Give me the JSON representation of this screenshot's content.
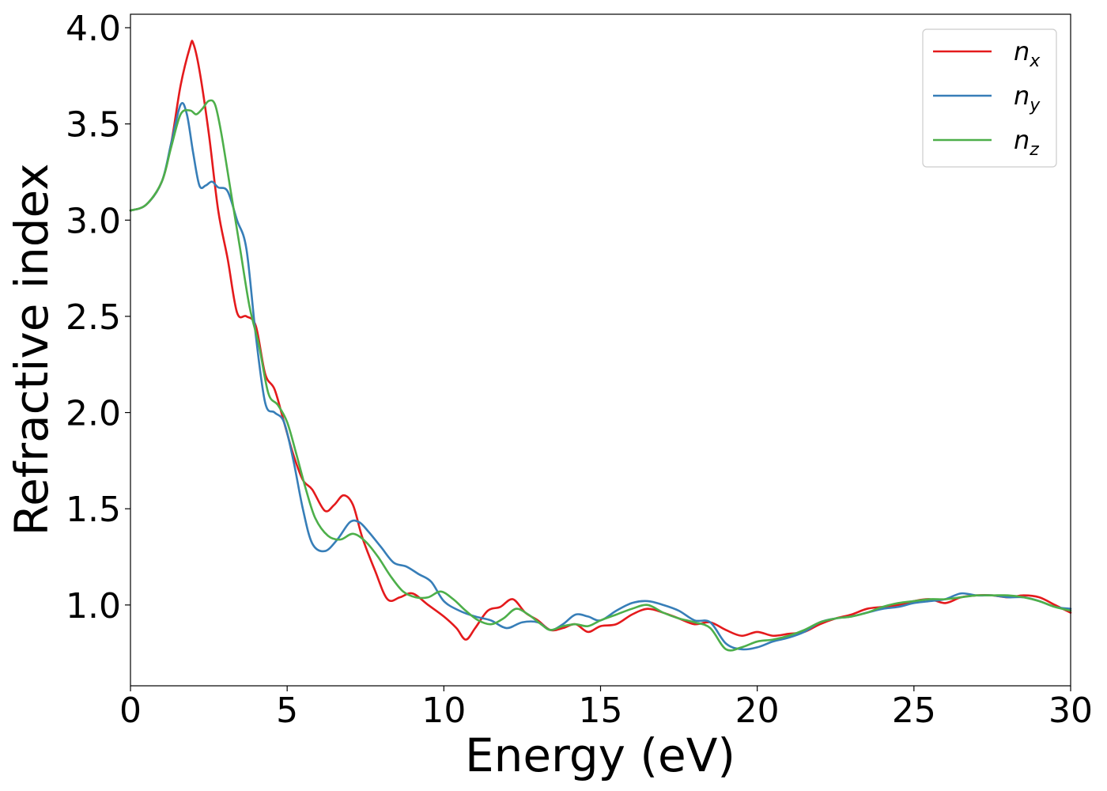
{
  "chart_data": {
    "type": "line",
    "title": "",
    "xlabel": "Energy (eV)",
    "ylabel": "Refractive index",
    "xlim": [
      0,
      30
    ],
    "ylim": [
      0.58,
      4.07
    ],
    "xticks": [
      "0",
      "5",
      "10",
      "15",
      "20",
      "25",
      "30"
    ],
    "yticks": [
      "1.0",
      "1.5",
      "2.0",
      "2.5",
      "3.0",
      "3.5",
      "4.0"
    ],
    "grid": false,
    "legend_position": "top-right",
    "series": [
      {
        "name": "n",
        "subscript": "x",
        "color": "#e41a1c",
        "x": [
          0,
          0.5,
          1.0,
          1.3,
          1.6,
          1.9,
          2.0,
          2.2,
          2.5,
          2.8,
          3.1,
          3.4,
          3.7,
          4.0,
          4.3,
          4.6,
          4.9,
          5.2,
          5.5,
          5.8,
          6.2,
          6.5,
          6.8,
          7.1,
          7.4,
          7.8,
          8.2,
          8.6,
          9.0,
          9.5,
          10.0,
          10.4,
          10.7,
          11.0,
          11.4,
          11.8,
          12.2,
          12.6,
          13.0,
          13.4,
          13.8,
          14.2,
          14.6,
          15.0,
          15.5,
          16.0,
          16.5,
          17.0,
          17.5,
          18.0,
          18.5,
          19.0,
          19.5,
          20.0,
          20.5,
          21.0,
          21.5,
          22.0,
          22.5,
          23.0,
          23.5,
          24.0,
          24.5,
          25.0,
          25.5,
          26.0,
          26.5,
          27.0,
          27.5,
          28.0,
          28.5,
          29.0,
          29.5,
          30.0
        ],
        "y": [
          3.05,
          3.08,
          3.2,
          3.4,
          3.7,
          3.9,
          3.92,
          3.78,
          3.45,
          3.05,
          2.8,
          2.52,
          2.5,
          2.45,
          2.2,
          2.12,
          1.95,
          1.78,
          1.65,
          1.6,
          1.49,
          1.52,
          1.57,
          1.52,
          1.35,
          1.18,
          1.03,
          1.04,
          1.06,
          1.0,
          0.94,
          0.88,
          0.82,
          0.88,
          0.97,
          0.99,
          1.03,
          0.96,
          0.92,
          0.87,
          0.88,
          0.9,
          0.86,
          0.89,
          0.9,
          0.95,
          0.98,
          0.96,
          0.93,
          0.9,
          0.91,
          0.87,
          0.84,
          0.86,
          0.84,
          0.85,
          0.86,
          0.9,
          0.93,
          0.95,
          0.98,
          0.99,
          1.0,
          1.02,
          1.03,
          1.01,
          1.04,
          1.05,
          1.05,
          1.04,
          1.05,
          1.04,
          1.0,
          0.96
        ]
      },
      {
        "name": "n",
        "subscript": "y",
        "color": "#377eb8",
        "x": [
          0,
          0.5,
          1.0,
          1.3,
          1.6,
          1.8,
          2.0,
          2.2,
          2.4,
          2.6,
          2.8,
          3.1,
          3.4,
          3.7,
          4.0,
          4.3,
          4.6,
          4.9,
          5.2,
          5.5,
          5.8,
          6.2,
          6.6,
          7.0,
          7.3,
          7.6,
          8.0,
          8.4,
          8.8,
          9.2,
          9.6,
          10.0,
          10.5,
          11.0,
          11.5,
          12.0,
          12.5,
          13.0,
          13.4,
          13.8,
          14.2,
          14.6,
          15.0,
          15.5,
          16.0,
          16.5,
          17.0,
          17.5,
          18.0,
          18.5,
          19.0,
          19.5,
          20.0,
          20.5,
          21.0,
          21.5,
          22.0,
          22.5,
          23.0,
          23.5,
          24.0,
          24.5,
          25.0,
          25.5,
          26.0,
          26.5,
          27.0,
          27.5,
          28.0,
          28.5,
          29.0,
          29.5,
          30.0
        ],
        "y": [
          3.05,
          3.08,
          3.2,
          3.4,
          3.6,
          3.55,
          3.35,
          3.18,
          3.18,
          3.2,
          3.17,
          3.15,
          3.0,
          2.85,
          2.4,
          2.05,
          2.0,
          1.95,
          1.75,
          1.5,
          1.32,
          1.28,
          1.34,
          1.43,
          1.43,
          1.38,
          1.3,
          1.22,
          1.2,
          1.16,
          1.12,
          1.02,
          0.97,
          0.94,
          0.92,
          0.88,
          0.91,
          0.91,
          0.87,
          0.9,
          0.95,
          0.94,
          0.92,
          0.97,
          1.01,
          1.02,
          1.0,
          0.97,
          0.92,
          0.91,
          0.8,
          0.77,
          0.78,
          0.81,
          0.83,
          0.86,
          0.91,
          0.93,
          0.94,
          0.96,
          0.98,
          0.99,
          1.01,
          1.02,
          1.03,
          1.06,
          1.05,
          1.05,
          1.04,
          1.04,
          1.02,
          0.99,
          0.98
        ]
      },
      {
        "name": "n",
        "subscript": "z",
        "color": "#4daf4a",
        "x": [
          0,
          0.5,
          1.0,
          1.3,
          1.6,
          1.9,
          2.1,
          2.3,
          2.5,
          2.7,
          2.9,
          3.2,
          3.5,
          3.8,
          4.1,
          4.4,
          4.7,
          5.0,
          5.3,
          5.6,
          5.9,
          6.3,
          6.7,
          7.1,
          7.5,
          7.9,
          8.3,
          8.7,
          9.1,
          9.5,
          9.9,
          10.3,
          10.7,
          11.1,
          11.5,
          11.9,
          12.3,
          12.7,
          13.1,
          13.4,
          13.8,
          14.2,
          14.6,
          15.0,
          15.5,
          16.0,
          16.5,
          17.0,
          17.5,
          18.0,
          18.5,
          19.0,
          19.5,
          20.0,
          20.5,
          21.0,
          21.5,
          22.0,
          22.5,
          23.0,
          23.5,
          24.0,
          24.5,
          25.0,
          25.5,
          26.0,
          26.5,
          27.0,
          27.5,
          28.0,
          28.5,
          29.0,
          29.5,
          30.0
        ],
        "y": [
          3.05,
          3.08,
          3.2,
          3.38,
          3.55,
          3.57,
          3.55,
          3.58,
          3.62,
          3.6,
          3.45,
          3.15,
          2.85,
          2.55,
          2.35,
          2.1,
          2.04,
          1.95,
          1.78,
          1.6,
          1.45,
          1.36,
          1.34,
          1.37,
          1.33,
          1.25,
          1.15,
          1.07,
          1.04,
          1.04,
          1.07,
          1.03,
          0.97,
          0.92,
          0.9,
          0.93,
          0.98,
          0.95,
          0.9,
          0.87,
          0.89,
          0.9,
          0.89,
          0.92,
          0.95,
          0.98,
          1.0,
          0.96,
          0.93,
          0.91,
          0.88,
          0.77,
          0.78,
          0.81,
          0.82,
          0.84,
          0.87,
          0.91,
          0.93,
          0.94,
          0.96,
          0.99,
          1.01,
          1.02,
          1.03,
          1.03,
          1.04,
          1.05,
          1.05,
          1.05,
          1.04,
          1.02,
          0.99,
          0.97
        ]
      }
    ]
  }
}
